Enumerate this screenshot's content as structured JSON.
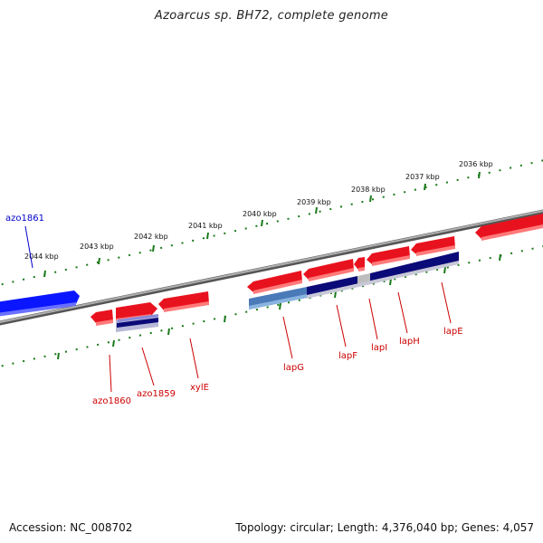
{
  "title": "Azoarcus sp. BH72, complete genome",
  "footer": {
    "accession": "Accession: NC_008702",
    "topology": "Topology: circular; Length: 4,376,040 bp; Genes: 4,057"
  },
  "colors": {
    "backbone": "#8a8a8a",
    "tick_green": "#1a7a1a",
    "forward_gene": "#e8121e",
    "reverse_gene": "#0a16ff",
    "feature_navy": "#0a0a78",
    "feature_steel": "#4a7ab8",
    "label_red": "#cc0000",
    "label_blue": "#0000cc"
  },
  "kbp_ticks": [
    "2036 kbp",
    "2037 kbp",
    "2038 kbp",
    "2039 kbp",
    "2040 kbp",
    "2041 kbp",
    "2042 kbp",
    "2043 kbp",
    "2044 kbp"
  ],
  "genes": [
    {
      "label": "azo1861",
      "strand": "reverse"
    },
    {
      "label": "azo1860",
      "strand": "forward"
    },
    {
      "label": "azo1859",
      "strand": "forward"
    },
    {
      "label": "xylE",
      "strand": "forward"
    },
    {
      "label": "lapG",
      "strand": "forward"
    },
    {
      "label": "lapF",
      "strand": "forward"
    },
    {
      "label": "lapI",
      "strand": "forward"
    },
    {
      "label": "lapH",
      "strand": "forward"
    },
    {
      "label": "lapE",
      "strand": "forward"
    }
  ]
}
